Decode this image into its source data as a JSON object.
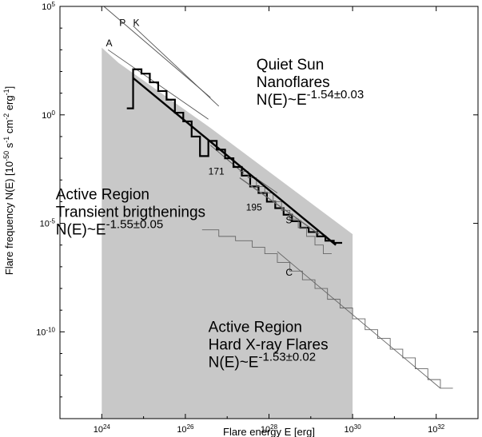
{
  "chart_data": {
    "type": "line",
    "xlabel": "Flare energy  E [erg]",
    "ylabel_prefix": "Flare frequency  N(E) [10",
    "ylabel_exp1": "-50",
    "ylabel_mid1": " s",
    "ylabel_exp2": "-1",
    "ylabel_mid2": " cm",
    "ylabel_exp3": "-2",
    "ylabel_mid3": " erg",
    "ylabel_exp4": "-1",
    "ylabel_suffix": "]",
    "x_log": true,
    "y_log": true,
    "xlim_exp": [
      23.0,
      33.0
    ],
    "ylim_exp": [
      -14.0,
      5.0
    ],
    "x_ticks": [
      {
        "exp": 24,
        "base": "10",
        "sup": "24"
      },
      {
        "exp": 26,
        "base": "10",
        "sup": "26"
      },
      {
        "exp": 28,
        "base": "10",
        "sup": "28"
      },
      {
        "exp": 30,
        "base": "10",
        "sup": "30"
      },
      {
        "exp": 32,
        "base": "10",
        "sup": "32"
      }
    ],
    "y_ticks": [
      {
        "exp": 5,
        "base": "10",
        "sup": "5"
      },
      {
        "exp": 0,
        "base": "10",
        "sup": "0"
      },
      {
        "exp": -5,
        "base": "10",
        "sup": "-5"
      },
      {
        "exp": -10,
        "base": "10",
        "sup": "-10"
      }
    ],
    "shaded_region": {
      "log_x": [
        24.0,
        24.0,
        24.4,
        26.6,
        30.0,
        30.0
      ],
      "log_y": [
        -14.0,
        3.1,
        2.4,
        -0.6,
        -5.5,
        -14.0
      ],
      "color": "#c8c8c8"
    },
    "reference_lines": [
      {
        "label": "A",
        "log_x": [
          24.15,
          26.55
        ],
        "log_y": [
          3.0,
          -0.2
        ]
      },
      {
        "label": "P",
        "log_x": [
          24.05,
          26.6
        ],
        "log_y": [
          5.0,
          0.8
        ]
      },
      {
        "label": "K",
        "log_x": [
          24.75,
          26.8
        ],
        "log_y": [
          4.1,
          0.4
        ]
      },
      {
        "label": "171",
        "log_x": [
          26.6,
          27.4
        ],
        "log_y": [
          -1.4,
          -2.7
        ]
      },
      {
        "label": "195",
        "log_x": [
          27.45,
          28.2
        ],
        "log_y": [
          -2.6,
          -3.6
        ]
      }
    ],
    "series": [
      {
        "name": "Quiet Sun Nanoflares",
        "style": "step-thick",
        "log_x": [
          24.6,
          24.75,
          24.95,
          25.15,
          25.35,
          25.55,
          25.75,
          25.95,
          26.15,
          26.35,
          26.55,
          26.75,
          26.95,
          27.15,
          27.35,
          27.55,
          27.75,
          27.95,
          28.15,
          28.35,
          28.55,
          28.75,
          28.95,
          29.15,
          29.35,
          29.55
        ],
        "log_y": [
          0.3,
          2.1,
          1.9,
          1.5,
          1.1,
          0.7,
          0.1,
          -0.3,
          -1.0,
          -1.9,
          -1.2,
          -1.6,
          -2.0,
          -2.4,
          -2.8,
          -3.3,
          -3.6,
          -4.0,
          -4.3,
          -4.6,
          -4.9,
          -5.2,
          -5.4,
          -5.6,
          -5.8,
          -5.9
        ]
      },
      {
        "name": "Active Region Transient brigthenings",
        "style": "step-thin",
        "log_x": [
          27.3,
          27.5,
          27.7,
          27.9,
          28.1,
          28.3,
          28.5,
          28.7,
          28.9,
          29.1,
          29.3
        ],
        "log_y": [
          -2.6,
          -2.9,
          -3.3,
          -3.6,
          -4.0,
          -4.4,
          -4.8,
          -5.2,
          -5.6,
          -6.0,
          -6.4
        ]
      },
      {
        "name": "Active Region Hard X-ray Flares",
        "style": "step-thin",
        "log_x": [
          26.4,
          26.8,
          27.2,
          27.6,
          27.9,
          28.2,
          28.5,
          28.8,
          29.1,
          29.4,
          29.7,
          30.0,
          30.3,
          30.6,
          30.9,
          31.2,
          31.5,
          31.8,
          32.1
        ],
        "log_y": [
          -5.3,
          -5.6,
          -5.8,
          -6.1,
          -6.4,
          -6.8,
          -7.2,
          -7.6,
          -8.0,
          -8.5,
          -8.9,
          -9.4,
          -9.9,
          -10.3,
          -10.8,
          -11.2,
          -11.7,
          -12.2,
          -12.6
        ]
      },
      {
        "name": "C",
        "style": "line-thin",
        "log_x": [
          28.2,
          32.1
        ],
        "log_y": [
          -6.3,
          -12.6
        ]
      },
      {
        "name": "Quiet Sun fit",
        "style": "line-thick",
        "log_x": [
          24.75,
          29.6
        ],
        "log_y": [
          1.7,
          -6.0
        ]
      },
      {
        "name": "Transient fit",
        "style": "line-medium",
        "log_x": [
          27.3,
          29.2
        ],
        "log_y": [
          -2.9,
          -5.5
        ]
      }
    ],
    "annotations": [
      {
        "id": "anno-A",
        "text": "A",
        "log_x": 24.1,
        "log_y": 3.15,
        "size": "small"
      },
      {
        "id": "anno-P",
        "text": "P",
        "log_x": 24.42,
        "log_y": 4.1,
        "size": "small"
      },
      {
        "id": "anno-K",
        "text": "K",
        "log_x": 24.75,
        "log_y": 4.1,
        "size": "small"
      },
      {
        "id": "anno-171",
        "text": "171",
        "log_x": 26.55,
        "log_y": -2.75,
        "size": "small"
      },
      {
        "id": "anno-195",
        "text": "195",
        "log_x": 27.45,
        "log_y": -4.4,
        "size": "small"
      },
      {
        "id": "anno-S",
        "text": "S",
        "log_x": 28.4,
        "log_y": -5.0,
        "size": "small"
      },
      {
        "id": "anno-C",
        "text": "C",
        "log_x": 28.4,
        "log_y": -7.4,
        "size": "small"
      }
    ],
    "text_blocks": [
      {
        "id": "qs",
        "lines": [
          "Quiet Sun",
          "Nanoflares"
        ],
        "formula_base": "N(E)~E",
        "formula_exp": "-1.54±0.03",
        "log_x": 27.7,
        "log_y": 2.1
      },
      {
        "id": "ar-tb",
        "lines": [
          "Active Region",
          "Transient brigthenings"
        ],
        "formula_base": "N(E)~E",
        "formula_exp": "-1.55±0.05",
        "log_x": 22.9,
        "log_y": -3.9
      },
      {
        "id": "ar-hxr",
        "lines": [
          "Active Region",
          "Hard X-ray Flares"
        ],
        "formula_base": "N(E)~E",
        "formula_exp": "-1.53±0.02",
        "log_x": 26.55,
        "log_y": -10.0
      }
    ]
  }
}
